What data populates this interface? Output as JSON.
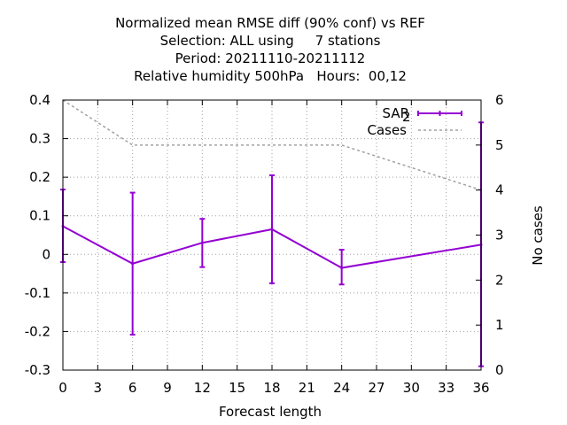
{
  "colors": {
    "sar": "#9400d3",
    "cases": "#a0a0a0",
    "grid": "#a0a0a0",
    "axis": "#000000"
  },
  "chart_data": {
    "type": "line",
    "title": [
      "Normalized mean RMSE diff (90% conf) vs REF",
      "Selection: ALL using     7 stations",
      "Period: 20211110-20211112",
      "Relative humidity 500hPa   Hours:  00,12"
    ],
    "xlabel": "Forecast length",
    "ylabel_right": "No cases",
    "xlim": [
      0,
      36
    ],
    "ylim": [
      -0.3,
      0.4
    ],
    "y2lim": [
      0,
      6
    ],
    "xticks": [
      "0",
      "3",
      "6",
      "9",
      "12",
      "15",
      "18",
      "21",
      "24",
      "27",
      "30",
      "33",
      "36"
    ],
    "yticks": [
      "0.4",
      "0.3",
      "0.2",
      "0.1",
      "0",
      "-0.1",
      "-0.2",
      "-0.3"
    ],
    "y2ticks": [
      "6",
      "5",
      "4",
      "3",
      "2",
      "1",
      "0"
    ],
    "grid": true,
    "legend_position": "top-right",
    "series": [
      {
        "name": "SAR",
        "name_sub": "2",
        "axis": "left",
        "x": [
          0,
          6,
          12,
          18,
          24,
          36
        ],
        "y": [
          0.073,
          -0.024,
          0.03,
          0.065,
          -0.035,
          0.025
        ],
        "err_low": [
          -0.02,
          -0.208,
          -0.033,
          -0.075,
          -0.078,
          -0.29
        ],
        "err_high": [
          0.168,
          0.16,
          0.092,
          0.205,
          0.012,
          0.342
        ]
      },
      {
        "name": "Cases",
        "axis": "right",
        "x": [
          0,
          6,
          12,
          18,
          24,
          36
        ],
        "y": [
          6,
          5,
          5,
          5,
          5,
          4
        ]
      }
    ]
  }
}
